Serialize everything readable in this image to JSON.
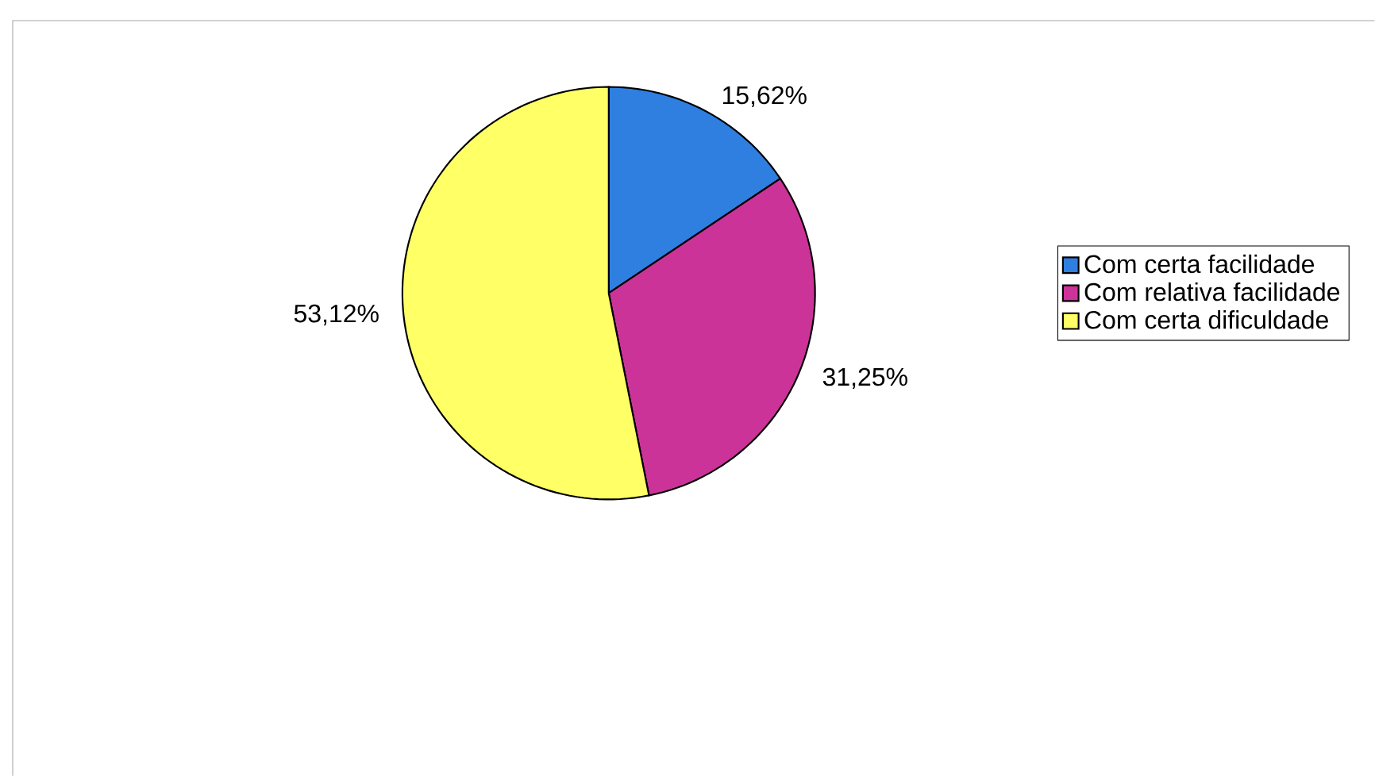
{
  "chart_data": {
    "type": "pie",
    "categories": [
      "Com certa facilidade",
      "Com relativa facilidade",
      "Com certa dificuldade"
    ],
    "values": [
      15.62,
      31.25,
      53.12
    ],
    "value_labels": [
      "15,62%",
      "31,25%",
      "53,12%"
    ],
    "colors": [
      "#2f7fe0",
      "#cc3399",
      "#ffff66"
    ],
    "legend": "right"
  }
}
